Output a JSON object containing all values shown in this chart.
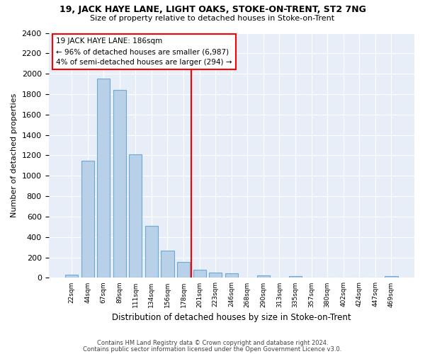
{
  "title1": "19, JACK HAYE LANE, LIGHT OAKS, STOKE-ON-TRENT, ST2 7NG",
  "title2": "Size of property relative to detached houses in Stoke-on-Trent",
  "xlabel": "Distribution of detached houses by size in Stoke-on-Trent",
  "ylabel": "Number of detached properties",
  "footer1": "Contains HM Land Registry data © Crown copyright and database right 2024.",
  "footer2": "Contains public sector information licensed under the Open Government Licence v3.0.",
  "bins": [
    "22sqm",
    "44sqm",
    "67sqm",
    "89sqm",
    "111sqm",
    "134sqm",
    "156sqm",
    "178sqm",
    "201sqm",
    "223sqm",
    "246sqm",
    "268sqm",
    "290sqm",
    "313sqm",
    "335sqm",
    "357sqm",
    "380sqm",
    "402sqm",
    "424sqm",
    "447sqm",
    "469sqm"
  ],
  "values": [
    30,
    1150,
    1950,
    1840,
    1210,
    510,
    270,
    155,
    80,
    50,
    45,
    0,
    25,
    0,
    15,
    0,
    0,
    0,
    0,
    0,
    20
  ],
  "bar_color": "#b8d0e8",
  "bar_edge_color": "#6aaad4",
  "property_bin_index": 7,
  "annotation_title": "19 JACK HAYE LANE: 186sqm",
  "annotation_line1": "← 96% of detached houses are smaller (6,987)",
  "annotation_line2": "4% of semi-detached houses are larger (294) →",
  "vline_color": "red",
  "annotation_box_edgecolor": "red",
  "annotation_box_facecolor": "#ffffff",
  "ylim": [
    0,
    2400
  ],
  "ytick_step": 200,
  "background_color": "#ffffff",
  "plot_bg_color": "#e8eef8"
}
